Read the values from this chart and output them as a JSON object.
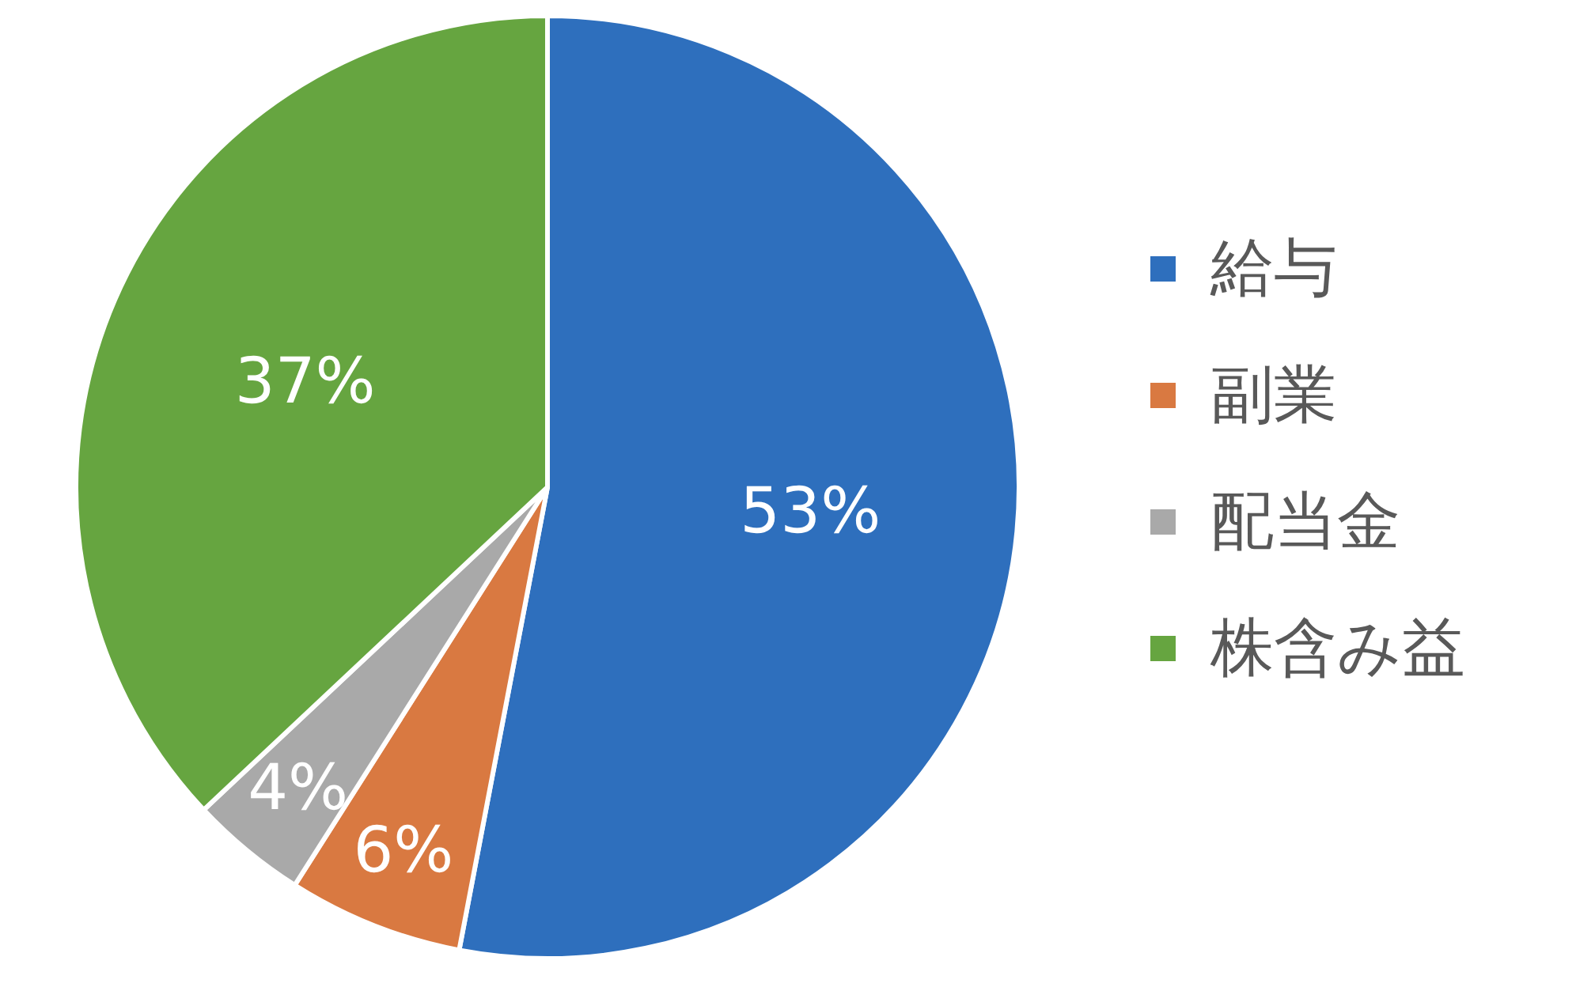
{
  "chart_data": {
    "type": "pie",
    "categories": [
      "給与",
      "副業",
      "配当金",
      "株含み益"
    ],
    "values": [
      53,
      6,
      4,
      37
    ],
    "colors": [
      "#2e6fbd",
      "#d97941",
      "#a9a9a9",
      "#66a540"
    ],
    "value_labels": [
      "53%",
      "6%",
      "4%",
      "37%"
    ],
    "legend": "right"
  }
}
